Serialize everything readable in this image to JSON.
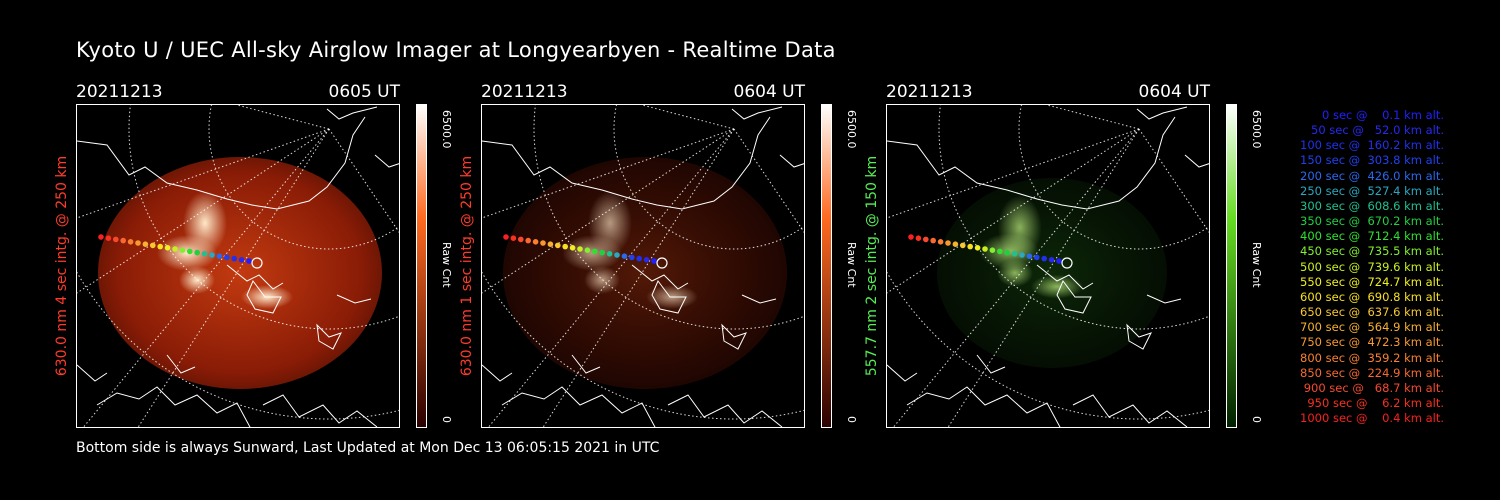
{
  "page": {
    "title": "Kyoto U / UEC All-sky Airglow Imager at Longyearbyen - Realtime Data",
    "footer": "Bottom side is always Sunward, Last Updated at Mon Dec 13 06:05:15 2021 in UTC"
  },
  "panels": [
    {
      "date": "20211213",
      "time": "0605 UT",
      "ylabel": "630.0 nm 4 sec intg. @ 250 km",
      "label_color": "#ff3b2a",
      "cbar_top": "#ffffff",
      "cbar_mid": "#ff6a20",
      "cbar_bot": "#2a0000",
      "cbar_max": "6500.0",
      "cbar_min": "0",
      "cbar_label": "Raw Cnt",
      "intensity": 1.0,
      "tint": "red"
    },
    {
      "date": "20211213",
      "time": "0604 UT",
      "ylabel": "630.0 nm 1 sec intg. @ 250 km",
      "label_color": "#ff3b2a",
      "cbar_top": "#ffffff",
      "cbar_mid": "#ff6a20",
      "cbar_bot": "#2a0000",
      "cbar_max": "6500.0",
      "cbar_min": "0",
      "cbar_label": "Raw Cnt",
      "intensity": 0.28,
      "tint": "red"
    },
    {
      "date": "20211213",
      "time": "0604 UT",
      "ylabel": "557.7 nm 2 sec intg. @ 150 km",
      "label_color": "#55ee55",
      "cbar_top": "#ffffff",
      "cbar_mid": "#66dd22",
      "cbar_bot": "#002000",
      "cbar_max": "6500.0",
      "cbar_min": "0",
      "cbar_label": "Raw Cnt",
      "intensity": 0.3,
      "tint": "green"
    }
  ],
  "legend": [
    {
      "text": "0 sec @    0.1 km alt.",
      "color": "#2020ff"
    },
    {
      "text": "50 sec @   52.0 km alt.",
      "color": "#2828ee"
    },
    {
      "text": "100 sec @  160.2 km alt.",
      "color": "#2030f0"
    },
    {
      "text": "150 sec @  303.8 km alt.",
      "color": "#2040f0"
    },
    {
      "text": "200 sec @  426.0 km alt.",
      "color": "#2a68ee"
    },
    {
      "text": "250 sec @  527.4 km alt.",
      "color": "#2aa8c0"
    },
    {
      "text": "300 sec @  608.6 km alt.",
      "color": "#20c090"
    },
    {
      "text": "350 sec @  670.2 km alt.",
      "color": "#20d040"
    },
    {
      "text": "400 sec @  712.4 km alt.",
      "color": "#30e030"
    },
    {
      "text": "450 sec @  735.5 km alt.",
      "color": "#80f030"
    },
    {
      "text": "500 sec @  739.6 km alt.",
      "color": "#c8f020"
    },
    {
      "text": "550 sec @  724.7 km alt.",
      "color": "#f0f020"
    },
    {
      "text": "600 sec @  690.8 km alt.",
      "color": "#f8e020"
    },
    {
      "text": "650 sec @  637.6 km alt.",
      "color": "#f8c830"
    },
    {
      "text": "700 sec @  564.9 km alt.",
      "color": "#f8b030"
    },
    {
      "text": "750 sec @  472.3 km alt.",
      "color": "#f89830"
    },
    {
      "text": "800 sec @  359.2 km alt.",
      "color": "#f88030"
    },
    {
      "text": "850 sec @  224.9 km alt.",
      "color": "#f86830"
    },
    {
      "text": "900 sec @   68.7 km alt.",
      "color": "#f84830"
    },
    {
      "text": "950 sec @    6.2 km alt.",
      "color": "#f83020"
    },
    {
      "text": "1000 sec @    0.4 km alt.",
      "color": "#f82020"
    }
  ]
}
